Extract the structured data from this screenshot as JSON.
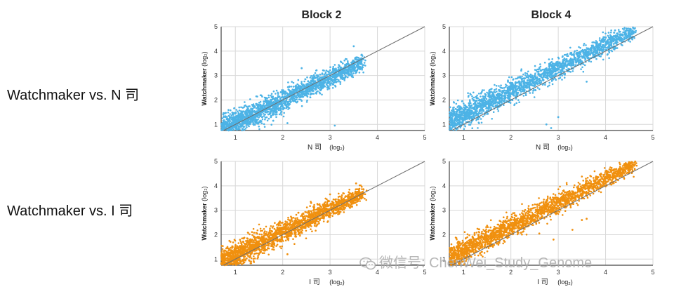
{
  "row_labels": [
    "Watchmaker vs. N 司",
    "Watchmaker vs. I 司"
  ],
  "block_titles": [
    "Block 2",
    "Block 4"
  ],
  "watermark": "微信号: ChenWei_Study_Genome",
  "colors": {
    "blue": "#4db3e6",
    "orange": "#f0900f",
    "grid": "#d8d8d8",
    "diagonal": "#6e6e6e"
  },
  "chart_data": [
    {
      "type": "scatter",
      "title": "Block 2",
      "xlabel": "N 司",
      "xunit": "(log₂)",
      "ylabel": "Watchmaker",
      "yunit": "(log₂)",
      "xlim": [
        0.7,
        5
      ],
      "ylim": [
        0.75,
        5
      ],
      "ticks": [
        1,
        2,
        3,
        4,
        5
      ],
      "grid": true,
      "reference_line": "y = x",
      "cloud": {
        "x_range": [
          0.7,
          3.7
        ],
        "slope": 0.92,
        "intercept": 0.15,
        "spread": 0.28
      },
      "color": "blue",
      "outliers": [
        [
          1.75,
          1.3
        ],
        [
          1.8,
          1.15
        ],
        [
          2.1,
          1.05
        ],
        [
          3.1,
          0.95
        ],
        [
          2.4,
          3.3
        ],
        [
          3.5,
          4.2
        ]
      ]
    },
    {
      "type": "scatter",
      "title": "Block 4",
      "xlabel": "N 司",
      "xunit": "(log₂)",
      "ylabel": "Watchmaker",
      "yunit": "(log₂)",
      "xlim": [
        0.7,
        5
      ],
      "ylim": [
        0.75,
        5
      ],
      "ticks": [
        1,
        2,
        3,
        4,
        5
      ],
      "grid": true,
      "reference_line": "y = x",
      "cloud": {
        "x_range": [
          0.7,
          4.6
        ],
        "slope": 0.95,
        "intercept": 0.45,
        "spread": 0.28
      },
      "color": "blue",
      "outliers": [
        [
          2.75,
          1.0
        ],
        [
          2.85,
          0.85
        ],
        [
          3.0,
          1.3
        ],
        [
          3.6,
          2.75
        ],
        [
          4.2,
          4.85
        ],
        [
          3.9,
          4.4
        ]
      ]
    },
    {
      "type": "scatter",
      "title": "",
      "xlabel": "I 司",
      "xunit": "(log₂)",
      "ylabel": "Watchmaker",
      "yunit": "(log₂)",
      "xlim": [
        0.7,
        5
      ],
      "ylim": [
        0.75,
        5
      ],
      "ticks": [
        1,
        2,
        3,
        4,
        5
      ],
      "grid": true,
      "reference_line": "y = x",
      "cloud": {
        "x_range": [
          0.7,
          3.7
        ],
        "slope": 0.95,
        "intercept": 0.2,
        "spread": 0.27
      },
      "color": "orange",
      "outliers": [
        [
          3.0,
          3.65
        ],
        [
          3.55,
          4.1
        ],
        [
          2.6,
          3.3
        ],
        [
          2.1,
          1.2
        ]
      ]
    },
    {
      "type": "scatter",
      "title": "",
      "xlabel": "I 司",
      "xunit": "(log₂)",
      "ylabel": "Watchmaker",
      "yunit": "(log₂)",
      "xlim": [
        0.7,
        5
      ],
      "ylim": [
        0.75,
        5
      ],
      "ticks": [
        1,
        2,
        3,
        4,
        5
      ],
      "grid": true,
      "reference_line": "y = x",
      "cloud": {
        "x_range": [
          0.7,
          4.6
        ],
        "slope": 0.98,
        "intercept": 0.35,
        "spread": 0.26
      },
      "color": "orange",
      "outliers": [
        [
          2.6,
          2.05
        ],
        [
          2.9,
          1.8
        ],
        [
          3.3,
          2.2
        ],
        [
          3.5,
          2.6
        ],
        [
          3.6,
          2.65
        ],
        [
          4.4,
          4.9
        ],
        [
          4.0,
          4.6
        ],
        [
          3.2,
          3.75
        ]
      ]
    }
  ]
}
